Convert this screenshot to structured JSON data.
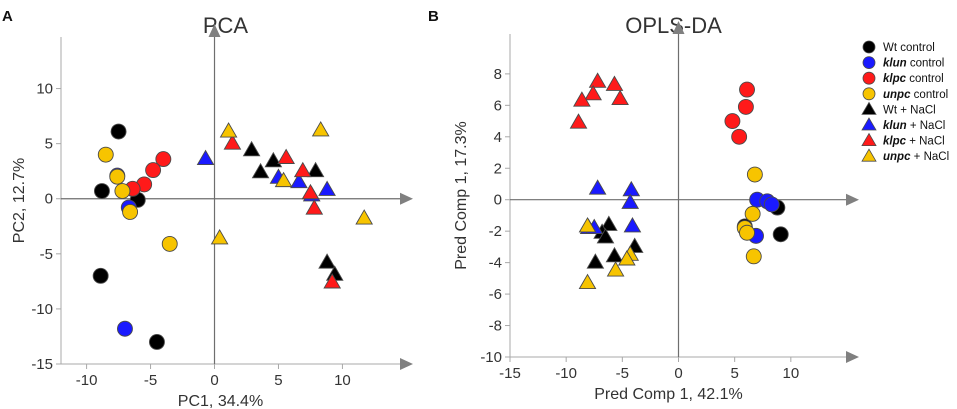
{
  "chart_data": [
    {
      "type": "scatter",
      "panel": "A",
      "title": "PCA",
      "xlabel": "PC1, 34.4%",
      "ylabel": "PC2, 12.7%",
      "xlim": [
        -12,
        14.5
      ],
      "ylim": [
        -15,
        13.5
      ],
      "xticks": [
        -10,
        -5,
        0,
        5,
        10
      ],
      "yticks": [
        -15,
        -10,
        -5,
        0,
        5,
        10
      ],
      "series": [
        {
          "key": "wt_control",
          "points": [
            [
              -7.5,
              6.1
            ],
            [
              -8.8,
              0.7
            ],
            [
              -6.0,
              -0.1
            ],
            [
              -8.9,
              -7.0
            ],
            [
              -4.5,
              -13.0
            ]
          ]
        },
        {
          "key": "klun_control",
          "points": [
            [
              -7.6,
              2.1
            ],
            [
              -6.7,
              -0.8
            ],
            [
              -7.0,
              -11.8
            ]
          ]
        },
        {
          "key": "klpc_control",
          "points": [
            [
              -4.0,
              3.6
            ],
            [
              -4.8,
              2.6
            ],
            [
              -5.5,
              1.3
            ],
            [
              -6.4,
              0.9
            ]
          ]
        },
        {
          "key": "unpc_control",
          "points": [
            [
              -8.5,
              4.0
            ],
            [
              -7.6,
              2.0
            ],
            [
              -7.2,
              0.7
            ],
            [
              -6.6,
              -1.2
            ],
            [
              -3.5,
              -4.1
            ]
          ]
        },
        {
          "key": "wt_nacl",
          "points": [
            [
              2.9,
              4.4
            ],
            [
              4.6,
              3.4
            ],
            [
              3.6,
              2.4
            ],
            [
              7.9,
              2.5
            ],
            [
              8.8,
              -5.8
            ],
            [
              9.4,
              -6.9
            ]
          ]
        },
        {
          "key": "klun_nacl",
          "points": [
            [
              -0.7,
              3.6
            ],
            [
              6.6,
              1.5
            ],
            [
              7.6,
              0.3
            ],
            [
              8.8,
              0.8
            ],
            [
              5.0,
              1.9
            ]
          ]
        },
        {
          "key": "klpc_nacl",
          "points": [
            [
              1.4,
              5.0
            ],
            [
              5.6,
              3.7
            ],
            [
              6.9,
              2.5
            ],
            [
              7.5,
              0.5
            ],
            [
              7.8,
              -0.9
            ],
            [
              9.2,
              -7.6
            ]
          ]
        },
        {
          "key": "unpc_nacl",
          "points": [
            [
              1.1,
              6.1
            ],
            [
              0.4,
              -3.6
            ],
            [
              5.4,
              1.6
            ],
            [
              8.3,
              6.2
            ],
            [
              11.7,
              -1.8
            ]
          ]
        }
      ]
    },
    {
      "type": "scatter",
      "panel": "B",
      "title": "OPLS-DA",
      "xlabel": "Pred Comp 1, 42.1%",
      "ylabel": "Pred Comp 1, 17.3%",
      "xlim": [
        -15,
        15
      ],
      "ylim": [
        -10,
        9.2
      ],
      "xticks": [
        -15,
        -10,
        -5,
        0,
        5,
        10
      ],
      "yticks": [
        -10,
        -8,
        -6,
        -4,
        -2,
        0,
        2,
        4,
        6,
        8
      ],
      "series": [
        {
          "key": "wt_control",
          "points": [
            [
              8.8,
              -0.5
            ],
            [
              9.1,
              -2.2
            ],
            [
              5.9,
              -1.7
            ]
          ]
        },
        {
          "key": "klun_control",
          "points": [
            [
              7.0,
              0.0
            ],
            [
              7.9,
              -0.1
            ],
            [
              6.9,
              -2.3
            ],
            [
              8.3,
              -0.3
            ]
          ]
        },
        {
          "key": "klpc_control",
          "points": [
            [
              6.1,
              7.0
            ],
            [
              6.0,
              5.9
            ],
            [
              4.8,
              5.0
            ],
            [
              5.4,
              4.0
            ]
          ]
        },
        {
          "key": "unpc_control",
          "points": [
            [
              6.8,
              1.6
            ],
            [
              6.6,
              -0.9
            ],
            [
              5.9,
              -1.8
            ],
            [
              6.1,
              -2.1
            ],
            [
              6.7,
              -3.6
            ]
          ]
        },
        {
          "key": "wt_nacl",
          "points": [
            [
              -6.2,
              -1.6
            ],
            [
              -6.8,
              -2.1
            ],
            [
              -6.5,
              -2.4
            ],
            [
              -7.4,
              -4.0
            ],
            [
              -5.7,
              -3.6
            ],
            [
              -3.9,
              -3.0
            ]
          ]
        },
        {
          "key": "klun_nacl",
          "points": [
            [
              -7.2,
              0.7
            ],
            [
              -4.2,
              0.6
            ],
            [
              -4.3,
              -0.2
            ],
            [
              -8.0,
              -1.8
            ],
            [
              -7.5,
              -1.8
            ],
            [
              -4.1,
              -1.7
            ]
          ]
        },
        {
          "key": "klpc_nacl",
          "points": [
            [
              -7.2,
              7.5
            ],
            [
              -5.7,
              7.3
            ],
            [
              -7.6,
              6.7
            ],
            [
              -8.6,
              6.3
            ],
            [
              -5.2,
              6.4
            ],
            [
              -8.9,
              4.9
            ]
          ]
        },
        {
          "key": "unpc_nacl",
          "points": [
            [
              -8.1,
              -1.7
            ],
            [
              -4.3,
              -3.5
            ],
            [
              -4.6,
              -3.8
            ],
            [
              -5.6,
              -4.5
            ],
            [
              -8.1,
              -5.3
            ]
          ]
        }
      ]
    }
  ],
  "panel_labels": {
    "a": "A",
    "b": "B"
  },
  "legend": [
    {
      "key": "wt_control",
      "shape": "circle",
      "color": "#000000",
      "genotype": "Wt",
      "genotype_italic": false,
      "suffix": " control"
    },
    {
      "key": "klun_control",
      "shape": "circle",
      "color": "#1a1aff",
      "genotype": "klun",
      "genotype_italic": true,
      "suffix": " control"
    },
    {
      "key": "klpc_control",
      "shape": "circle",
      "color": "#ff1a1a",
      "genotype": "klpc",
      "genotype_italic": true,
      "suffix": " control"
    },
    {
      "key": "unpc_control",
      "shape": "circle",
      "color": "#f7c400",
      "genotype": "unpc",
      "genotype_italic": true,
      "suffix": " control"
    },
    {
      "key": "wt_nacl",
      "shape": "triangle",
      "color": "#000000",
      "genotype": "Wt",
      "genotype_italic": false,
      "suffix": " + NaCl"
    },
    {
      "key": "klun_nacl",
      "shape": "triangle",
      "color": "#1a1aff",
      "genotype": "klun",
      "genotype_italic": true,
      "suffix": " + NaCl"
    },
    {
      "key": "klpc_nacl",
      "shape": "triangle",
      "color": "#ff1a1a",
      "genotype": "klpc",
      "genotype_italic": true,
      "suffix": " + NaCl"
    },
    {
      "key": "unpc_nacl",
      "shape": "triangle",
      "color": "#f7c400",
      "genotype": "unpc",
      "genotype_italic": true,
      "suffix": " + NaCl"
    }
  ],
  "colors": {
    "axis": "#808080",
    "zero_line": "#6e6e6e",
    "frame": "#a8a8a8",
    "text": "#333333"
  }
}
